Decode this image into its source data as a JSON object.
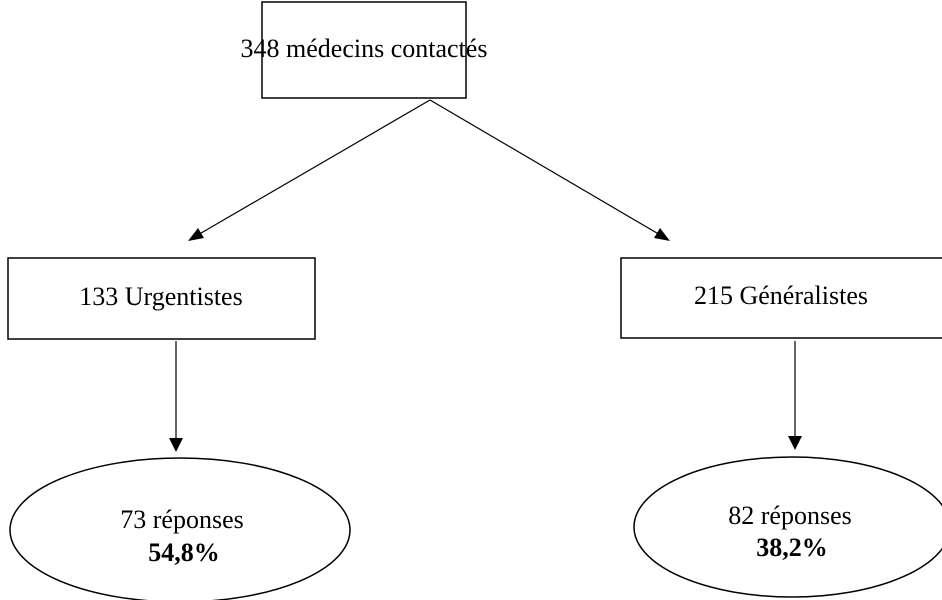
{
  "nodes": [
    {
      "label": "348 médecins contactés"
    },
    {
      "label": "133 Urgentistes"
    },
    {
      "label": "215 Généralistes"
    },
    {
      "label": "73 réponses",
      "percent": "54,8%"
    },
    {
      "label": "82 réponses",
      "percent": "38,2%"
    }
  ]
}
